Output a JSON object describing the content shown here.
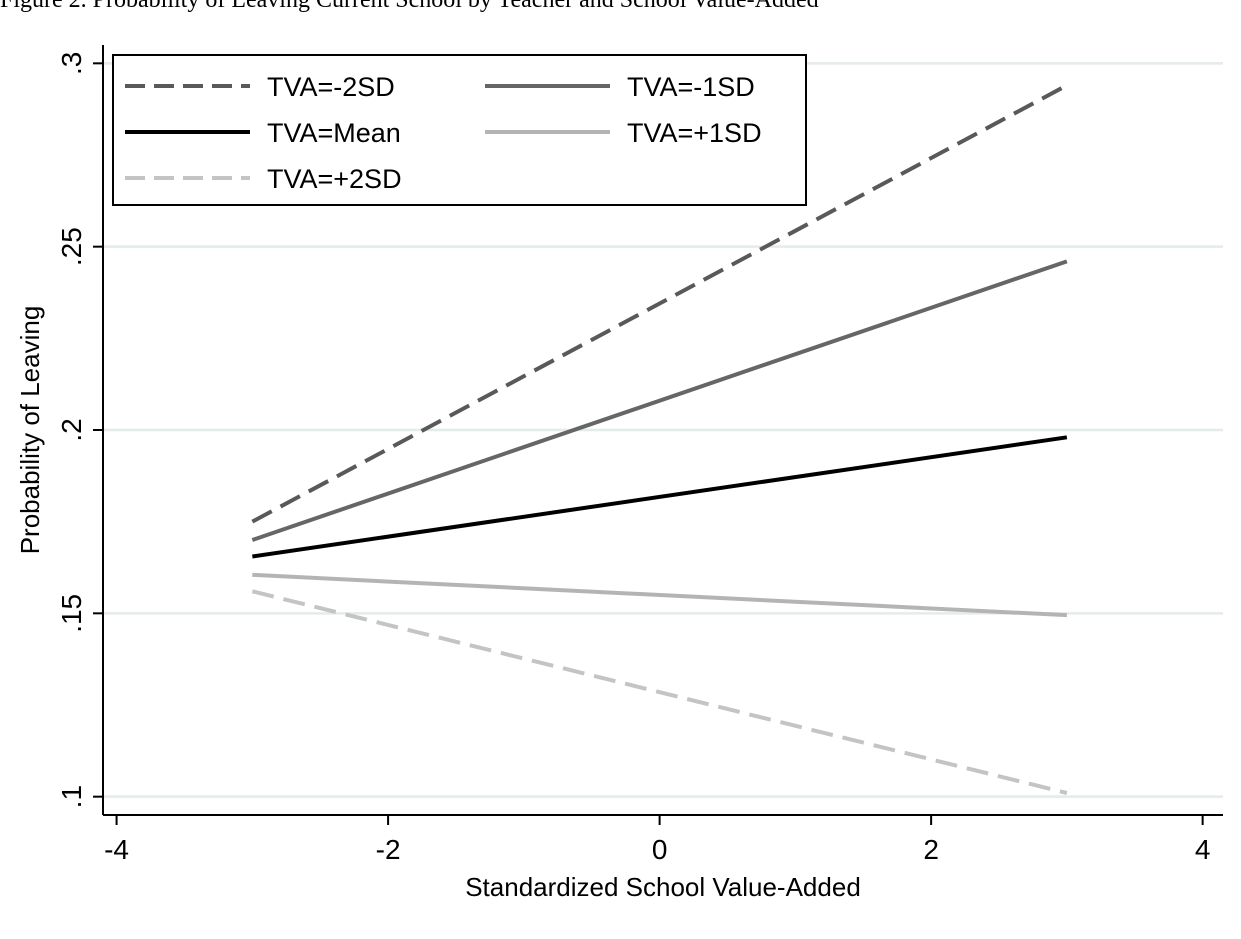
{
  "caption": "Figure 2. Probability of Leaving Current School by Teacher and School Value-Added",
  "chart_data": {
    "type": "line",
    "title": "",
    "xlabel": "Standardized School Value-Added",
    "ylabel": "Probability of Leaving",
    "xlim": [
      -4.1,
      4.15
    ],
    "ylim": [
      0.095,
      0.305
    ],
    "xticks": [
      -4,
      -2,
      0,
      2,
      4
    ],
    "xtick_labels": [
      "-4",
      "-2",
      "0",
      "2",
      "4"
    ],
    "yticks": [
      0.1,
      0.15,
      0.2,
      0.25,
      0.3
    ],
    "ytick_labels": [
      ".1",
      ".15",
      ".2",
      ".25",
      ".3"
    ],
    "grid": "horizontal",
    "legend_position": "top-left",
    "x": [
      -3,
      3
    ],
    "series": [
      {
        "name": "TVA=-2SD",
        "values": [
          0.175,
          0.294
        ],
        "color": "#595959",
        "style": "dashed"
      },
      {
        "name": "TVA=-1SD",
        "values": [
          0.17,
          0.246
        ],
        "color": "#666666",
        "style": "solid"
      },
      {
        "name": "TVA=Mean",
        "values": [
          0.1655,
          0.198
        ],
        "color": "#000000",
        "style": "solid"
      },
      {
        "name": "TVA=+1SD",
        "values": [
          0.1605,
          0.1495
        ],
        "color": "#b4b4b4",
        "style": "solid"
      },
      {
        "name": "TVA=+2SD",
        "values": [
          0.156,
          0.101
        ],
        "color": "#c4c4c4",
        "style": "dashed"
      }
    ],
    "gridline_color": "#e4ece9"
  }
}
